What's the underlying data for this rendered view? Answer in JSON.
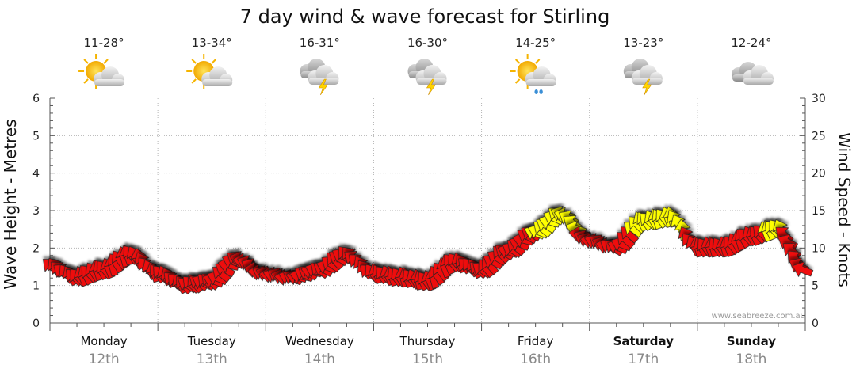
{
  "chart_data": {
    "type": "line",
    "title": "7 day wind & wave forecast for Stirling",
    "ylabel_left": "Wave Height - Metres",
    "ylabel_right": "Wind Speed - Knots",
    "ylim_left": [
      0,
      6
    ],
    "ylim_right": [
      0,
      30
    ],
    "yticks_left": [
      "0",
      "1",
      "2",
      "3",
      "4",
      "5",
      "6"
    ],
    "yticks_right": [
      "0",
      "5",
      "10",
      "15",
      "20",
      "25",
      "30"
    ],
    "grid": true,
    "credit": "www.seabreeze.com.au",
    "days": [
      {
        "name": "Monday",
        "date": "12th",
        "temp": "11-28°",
        "weather_icon": "sun-cloud-icon",
        "bold": false
      },
      {
        "name": "Tuesday",
        "date": "13th",
        "temp": "13-34°",
        "weather_icon": "sun-cloud-icon",
        "bold": false
      },
      {
        "name": "Wednesday",
        "date": "14th",
        "temp": "16-31°",
        "weather_icon": "storm-cloud-icon",
        "bold": false
      },
      {
        "name": "Thursday",
        "date": "15th",
        "temp": "16-30°",
        "weather_icon": "storm-cloud-icon",
        "bold": false
      },
      {
        "name": "Friday",
        "date": "16th",
        "temp": "14-25°",
        "weather_icon": "sun-rain-cloud-icon",
        "bold": false
      },
      {
        "name": "Saturday",
        "date": "17th",
        "temp": "13-23°",
        "weather_icon": "storm-cloud-icon",
        "bold": true
      },
      {
        "name": "Sunday",
        "date": "18th",
        "temp": "12-24°",
        "weather_icon": "cloud-icon",
        "bold": true
      }
    ],
    "wind_x_days": [
      0.0,
      0.25,
      0.5,
      0.75,
      1.0,
      1.25,
      1.5,
      1.75,
      2.0,
      2.25,
      2.5,
      2.75,
      3.0,
      3.25,
      3.5,
      3.75,
      4.0,
      4.25,
      4.5,
      4.75,
      5.0,
      5.25,
      5.5,
      5.75,
      6.0,
      6.25,
      6.5,
      6.75,
      7.0
    ],
    "wind_speed_knots": [
      7.5,
      6,
      7,
      9,
      6.5,
      5,
      5.5,
      8.5,
      6.5,
      6,
      7,
      9,
      6.5,
      6,
      5.5,
      8,
      7,
      9.5,
      12,
      14.5,
      11,
      10,
      13.5,
      14,
      10,
      10,
      11.5,
      12.5,
      7
    ],
    "wind_colors": [
      "#ee1111",
      "#ffff00"
    ],
    "wind_color_threshold_knots": 12,
    "series": [
      {
        "name": "Wind Speed - Knots",
        "color": "#ee1111"
      }
    ]
  }
}
